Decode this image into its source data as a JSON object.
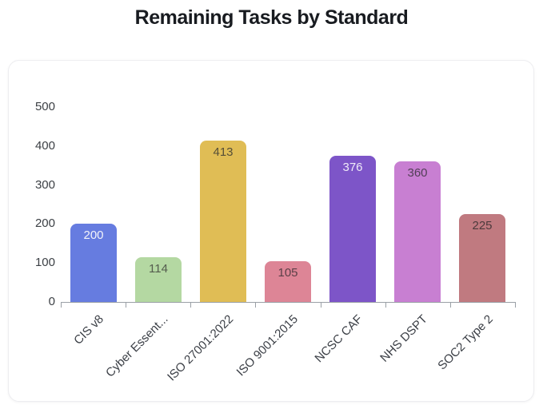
{
  "page": {
    "title": "Remaining Tasks by Standard"
  },
  "chart_data": {
    "type": "bar",
    "title": "Remaining Tasks by Standard",
    "categories": [
      "CIS v8",
      "Cyber Essent...",
      "ISO 27001:2022",
      "ISO 9001:2015",
      "NCSC CAF",
      "NHS DSPT",
      "SOC2 Type 2"
    ],
    "values": [
      200,
      114,
      413,
      105,
      376,
      360,
      225
    ],
    "bar_colors": [
      "#667ce0",
      "#b4d8a2",
      "#e0bd55",
      "#dd8596",
      "#7d55c8",
      "#c87fd2",
      "#c07a80"
    ],
    "value_label_colors": [
      "#f2f3fa",
      "#545c4e",
      "#564f38",
      "#5a3f47",
      "#efeaf8",
      "#513f56",
      "#4c3a3c"
    ],
    "value_labels_position": "inside-top",
    "xlabel": "",
    "ylabel": "",
    "ylim": [
      0,
      500
    ],
    "yticks": [
      0,
      100,
      200,
      300,
      400,
      500
    ],
    "grid": false,
    "legend": null,
    "axis_color": "#9aa0a6",
    "tick_label_color": "#3c4045",
    "title_color": "#181b20",
    "card_background": "#ffffff"
  }
}
